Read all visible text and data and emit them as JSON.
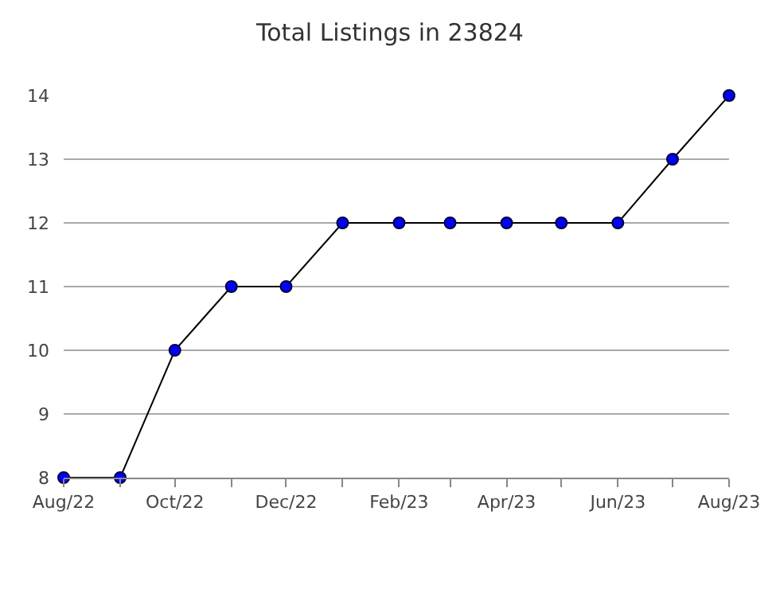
{
  "chart_data": {
    "type": "line",
    "title": "Total Listings in 23824",
    "x": [
      "2022-08",
      "2022-09",
      "2022-10",
      "2022-11",
      "2022-12",
      "2023-01",
      "2023-02",
      "2023-03",
      "2023-04",
      "2023-05",
      "2023-06",
      "2023-07",
      "2023-08"
    ],
    "series": [
      {
        "color": "#0000ff",
        "values": [
          8,
          8,
          10,
          11,
          11,
          12,
          12,
          12,
          12,
          12,
          12,
          13,
          14
        ]
      }
    ],
    "xlim": [
      "2022-08",
      "2023-08"
    ],
    "xticks": [
      {
        "value": "2022-08",
        "label": "Aug/22"
      },
      {
        "value": "2022-09",
        "label": null
      },
      {
        "value": "2022-10",
        "label": "Oct/22"
      },
      {
        "value": "2022-11",
        "label": null
      },
      {
        "value": "2022-12",
        "label": "Dec/22"
      },
      {
        "value": "2023-01",
        "label": null
      },
      {
        "value": "2023-02",
        "label": "Feb/23"
      },
      {
        "value": "2023-03",
        "label": null
      },
      {
        "value": "2023-04",
        "label": "Apr/23"
      },
      {
        "value": "2023-05",
        "label": null
      },
      {
        "value": "2023-06",
        "label": "Jun/23"
      },
      {
        "value": "2023-07",
        "label": null
      },
      {
        "value": "2023-08",
        "label": "Aug/23"
      }
    ],
    "ylim": [
      8,
      14
    ],
    "yticks": [
      8,
      9,
      10,
      11,
      12,
      13,
      14
    ],
    "grid": "y",
    "marker": "circle",
    "line_style": "solid"
  }
}
